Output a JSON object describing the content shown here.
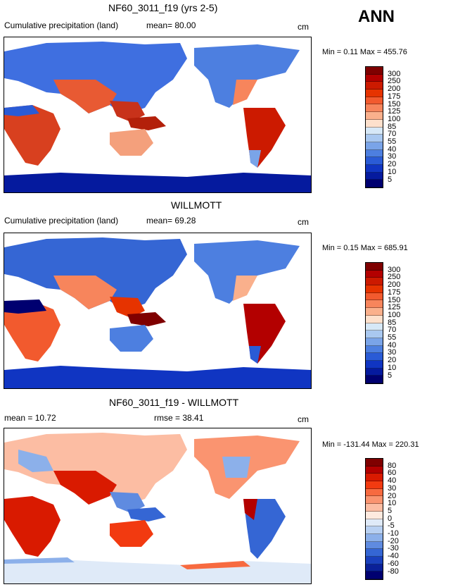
{
  "season_label": "ANN",
  "panels": [
    {
      "title": "NF60_3011_f19 (yrs 2-5)",
      "left_label": "Cumulative precipitation (land)",
      "mean_label": "mean=  80.00",
      "units": "cm",
      "min_max": "Min =    0.11 Max = 455.76",
      "colorbar_labels": [
        "300",
        "250",
        "200",
        "175",
        "150",
        "125",
        "100",
        "85",
        "70",
        "55",
        "40",
        "30",
        "20",
        "10",
        "5"
      ],
      "colors": [
        "#7f0000",
        "#b30000",
        "#cc1a00",
        "#e63300",
        "#f25a2e",
        "#f7855c",
        "#fab08c",
        "#fde0cc",
        "#d6e8f7",
        "#a9c8f0",
        "#7aa4e8",
        "#4d7fe0",
        "#2a5bd6",
        "#1035c2",
        "#051a9e",
        "#000070"
      ]
    },
    {
      "title": "WILLMOTT",
      "left_label": "Cumulative precipitation (land)",
      "mean_label": "mean=  69.28",
      "units": "cm",
      "min_max": "Min =    0.15 Max = 685.91",
      "colorbar_labels": [
        "300",
        "250",
        "200",
        "175",
        "150",
        "125",
        "100",
        "85",
        "70",
        "55",
        "40",
        "30",
        "20",
        "10",
        "5"
      ],
      "colors": [
        "#7f0000",
        "#b30000",
        "#cc1a00",
        "#e63300",
        "#f25a2e",
        "#f7855c",
        "#fab08c",
        "#fde0cc",
        "#d6e8f7",
        "#a9c8f0",
        "#7aa4e8",
        "#4d7fe0",
        "#2a5bd6",
        "#1035c2",
        "#051a9e",
        "#000070"
      ]
    },
    {
      "title": "NF60_3011_f19 - WILLMOTT",
      "left_label": "mean =   10.72",
      "mean_label": "rmse =   38.41",
      "units": "cm",
      "min_max": "Min = -131.44 Max = 220.31",
      "colorbar_labels": [
        "80",
        "60",
        "40",
        "30",
        "20",
        "10",
        "5",
        "0",
        "-5",
        "-10",
        "-20",
        "-30",
        "-40",
        "-60",
        "-80"
      ],
      "colors": [
        "#7f0000",
        "#b30000",
        "#d91a00",
        "#f23a10",
        "#f76a40",
        "#fa9470",
        "#fcbda3",
        "#feeadf",
        "#dfeaf8",
        "#b8d0f2",
        "#8cb0ea",
        "#5f8be0",
        "#3566d4",
        "#1a40bd",
        "#0a2099",
        "#000070"
      ]
    }
  ]
}
